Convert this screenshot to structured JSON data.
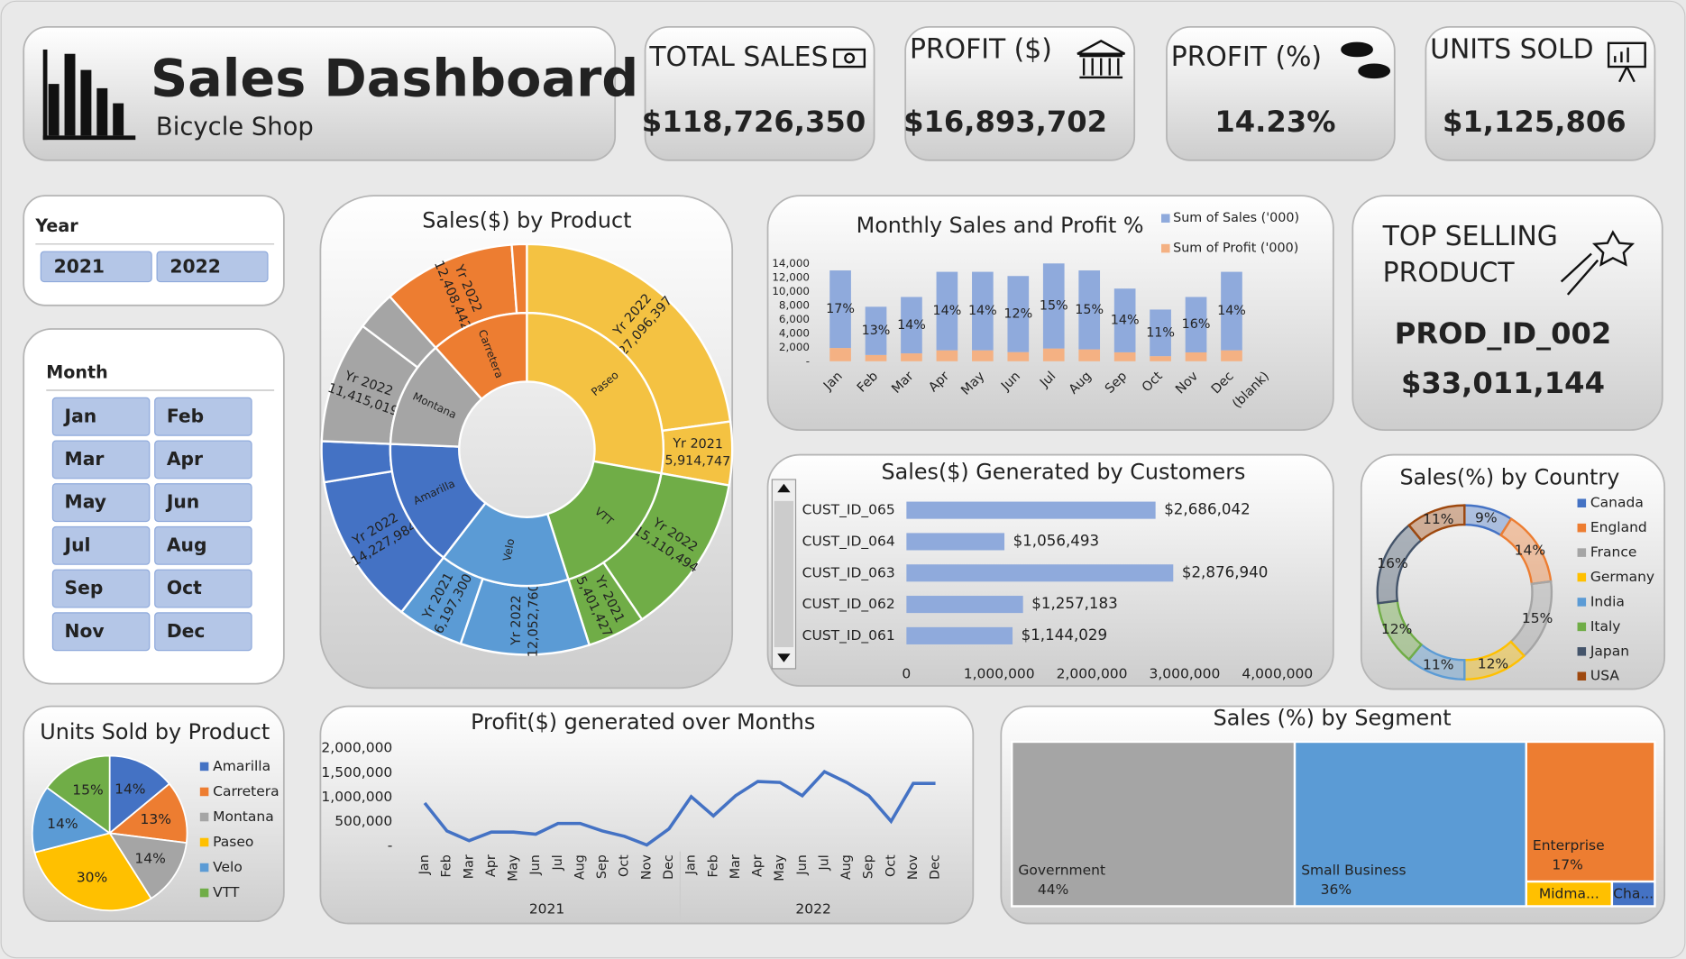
{
  "header": {
    "title": "Sales Dashboard",
    "subtitle": "Bicycle Shop"
  },
  "kpis": [
    {
      "label": "TOTAL SALES",
      "value": "$118,726,350"
    },
    {
      "label": "PROFIT ($)",
      "value": "$16,893,702"
    },
    {
      "label": "PROFIT (%)",
      "value": "14.23%"
    },
    {
      "label": "UNITS SOLD",
      "value": "$1,125,806"
    }
  ],
  "top_selling": {
    "title": [
      "TOP SELLING",
      "PRODUCT"
    ],
    "product": "PROD_ID_002",
    "sales": "$33,011,144"
  },
  "slicers": {
    "year": {
      "title": "Year",
      "items": [
        "2021",
        "2022"
      ]
    },
    "month": {
      "title": "Month",
      "items": [
        "Jan",
        "Feb",
        "Mar",
        "Apr",
        "May",
        "Jun",
        "Jul",
        "Aug",
        "Sep",
        "Oct",
        "Nov",
        "Dec"
      ]
    }
  },
  "chart_data": [
    {
      "type": "sunburst",
      "title": "Sales($) by Product",
      "categories": [
        "Paseo",
        "VTT",
        "Velo",
        "Amarilla",
        "Montana",
        "Carretera"
      ],
      "colors": [
        "#f4c242",
        "#70ad47",
        "#5b9bd5",
        "#4472c4",
        "#a5a5a5",
        "#ed7d31"
      ],
      "series": [
        {
          "name": "Yr 2022",
          "values": [
            27096397,
            15110494,
            12052760,
            14227984,
            11415019,
            12408442
          ],
          "value_labels": [
            "27,096,397",
            "15,110,494",
            "12,052,760",
            "14,227,984",
            "11,415,019",
            "12,408,442"
          ]
        },
        {
          "name": "Yr 2021",
          "values": [
            5914747,
            5401427,
            6197300,
            3800000,
            3700000,
            1400000
          ],
          "value_labels": [
            "5,914,747",
            "5,401,427",
            "6,197,300",
            null,
            null,
            null
          ]
        }
      ]
    },
    {
      "type": "bar",
      "stacked": true,
      "title": "Monthly Sales and Profit %",
      "categories": [
        "Jan",
        "Feb",
        "Mar",
        "Apr",
        "May",
        "Jun",
        "Jul",
        "Aug",
        "Sep",
        "Oct",
        "Nov",
        "Dec",
        "(blank)"
      ],
      "series": [
        {
          "name": "Sum of Sales ('000)",
          "color": "#8faadc",
          "values": [
            11100,
            6900,
            8070,
            11230,
            11230,
            10890,
            12170,
            11300,
            9120,
            6670,
            7930,
            11230,
            null
          ]
        },
        {
          "name": "Sum of Profit ('000)",
          "color": "#f4b183",
          "values": [
            1900,
            900,
            1130,
            1570,
            1570,
            1310,
            1830,
            1700,
            1280,
            730,
            1270,
            1570,
            null
          ]
        }
      ],
      "profit_pct_labels": [
        "17%",
        "13%",
        "14%",
        "14%",
        "14%",
        "12%",
        "15%",
        "15%",
        "14%",
        "11%",
        "16%",
        "14%",
        null
      ],
      "ylim": [
        0,
        14000
      ],
      "yticks": [
        {
          "value": 0,
          "label": "-"
        },
        {
          "value": 2000,
          "label": "2,000"
        },
        {
          "value": 4000,
          "label": "4,000"
        },
        {
          "value": 6000,
          "label": "6,000"
        },
        {
          "value": 8000,
          "label": "8,000"
        },
        {
          "value": 10000,
          "label": "10,000"
        },
        {
          "value": 12000,
          "label": "12,000"
        },
        {
          "value": 14000,
          "label": "14,000"
        }
      ]
    },
    {
      "type": "bar",
      "orientation": "horizontal",
      "title": "Sales($) Generated by Customers",
      "categories": [
        "CUST_ID_065",
        "CUST_ID_064",
        "CUST_ID_063",
        "CUST_ID_062",
        "CUST_ID_061"
      ],
      "values": [
        2686042,
        1056493,
        2876940,
        1257183,
        1144029
      ],
      "value_labels": [
        "$2,686,042",
        "$1,056,493",
        "$2,876,940",
        "$1,257,183",
        "$1,144,029"
      ],
      "color": "#8faadc",
      "xlim": [
        0,
        4000000
      ],
      "xticks": [
        0,
        {
          "value": 1000000,
          "label": "1,000,000"
        },
        {
          "value": 2000000,
          "label": "2,000,000"
        },
        {
          "value": 3000000,
          "label": "3,000,000"
        },
        {
          "value": 4000000,
          "label": "4,000,000"
        }
      ]
    },
    {
      "type": "doughnut",
      "title": "Sales(%) by Country",
      "categories": [
        "Canada",
        "England",
        "France",
        "Germany",
        "India",
        "Italy",
        "Japan",
        "USA"
      ],
      "values": [
        9,
        14,
        15,
        12,
        11,
        12,
        16,
        11
      ],
      "value_labels": [
        "9%",
        "14%",
        "15%",
        "12%",
        "11%",
        "12%",
        "16%",
        "11%"
      ],
      "colors": [
        "#4472c4",
        "#ed7d31",
        "#a5a5a5",
        "#ffc000",
        "#5b9bd5",
        "#70ad47",
        "#44546a",
        "#9e480e"
      ]
    },
    {
      "type": "pie",
      "title": "Units Sold by Product",
      "categories": [
        "Amarilla",
        "Carretera",
        "Montana",
        "Paseo",
        "Velo",
        "VTT"
      ],
      "values": [
        14,
        13,
        14,
        30,
        14,
        15
      ],
      "value_labels": [
        "14%",
        "13%",
        "14%",
        "30%",
        "14%",
        "15%"
      ],
      "colors": [
        "#4472c4",
        "#ed7d31",
        "#a5a5a5",
        "#ffc000",
        "#5b9bd5",
        "#70ad47"
      ]
    },
    {
      "type": "line",
      "title": "Profit($) generated over Months",
      "categories": [
        "Jan",
        "Feb",
        "Mar",
        "Apr",
        "May",
        "Jun",
        "Jul",
        "Aug",
        "Sep",
        "Oct",
        "Nov",
        "Dec",
        "Jan",
        "Feb",
        "Mar",
        "Apr",
        "May",
        "Jun",
        "Jul",
        "Aug",
        "Sep",
        "Oct",
        "Nov",
        "Dec"
      ],
      "groups": [
        "2021",
        "2022"
      ],
      "values": [
        880000,
        308000,
        110000,
        286000,
        286000,
        242000,
        462000,
        462000,
        308000,
        198000,
        22000,
        352000,
        1010000,
        616000,
        1030000,
        1320000,
        1300000,
        1030000,
        1520000,
        1300000,
        1030000,
        506000,
        1280000,
        1280000
      ],
      "color": "#4472c4",
      "ylim": [
        0,
        2000000
      ],
      "yticks": [
        {
          "value": 0,
          "label": "-"
        },
        {
          "value": 500000,
          "label": "500,000"
        },
        {
          "value": 1000000,
          "label": "1,000,000"
        },
        {
          "value": 1500000,
          "label": "1,500,000"
        },
        {
          "value": 2000000,
          "label": "2,000,000"
        }
      ]
    },
    {
      "type": "treemap",
      "title": "Sales (%) by Segment",
      "categories": [
        "Government",
        "Small Business",
        "Enterprise",
        "Midma...",
        "Cha..."
      ],
      "values": [
        44,
        36,
        17,
        2,
        1
      ],
      "value_labels": [
        "44%",
        "36%",
        "17%",
        null,
        null
      ],
      "colors": [
        "#a5a5a5",
        "#5b9bd5",
        "#ed7d31",
        "#ffc000",
        "#4472c4"
      ]
    }
  ]
}
